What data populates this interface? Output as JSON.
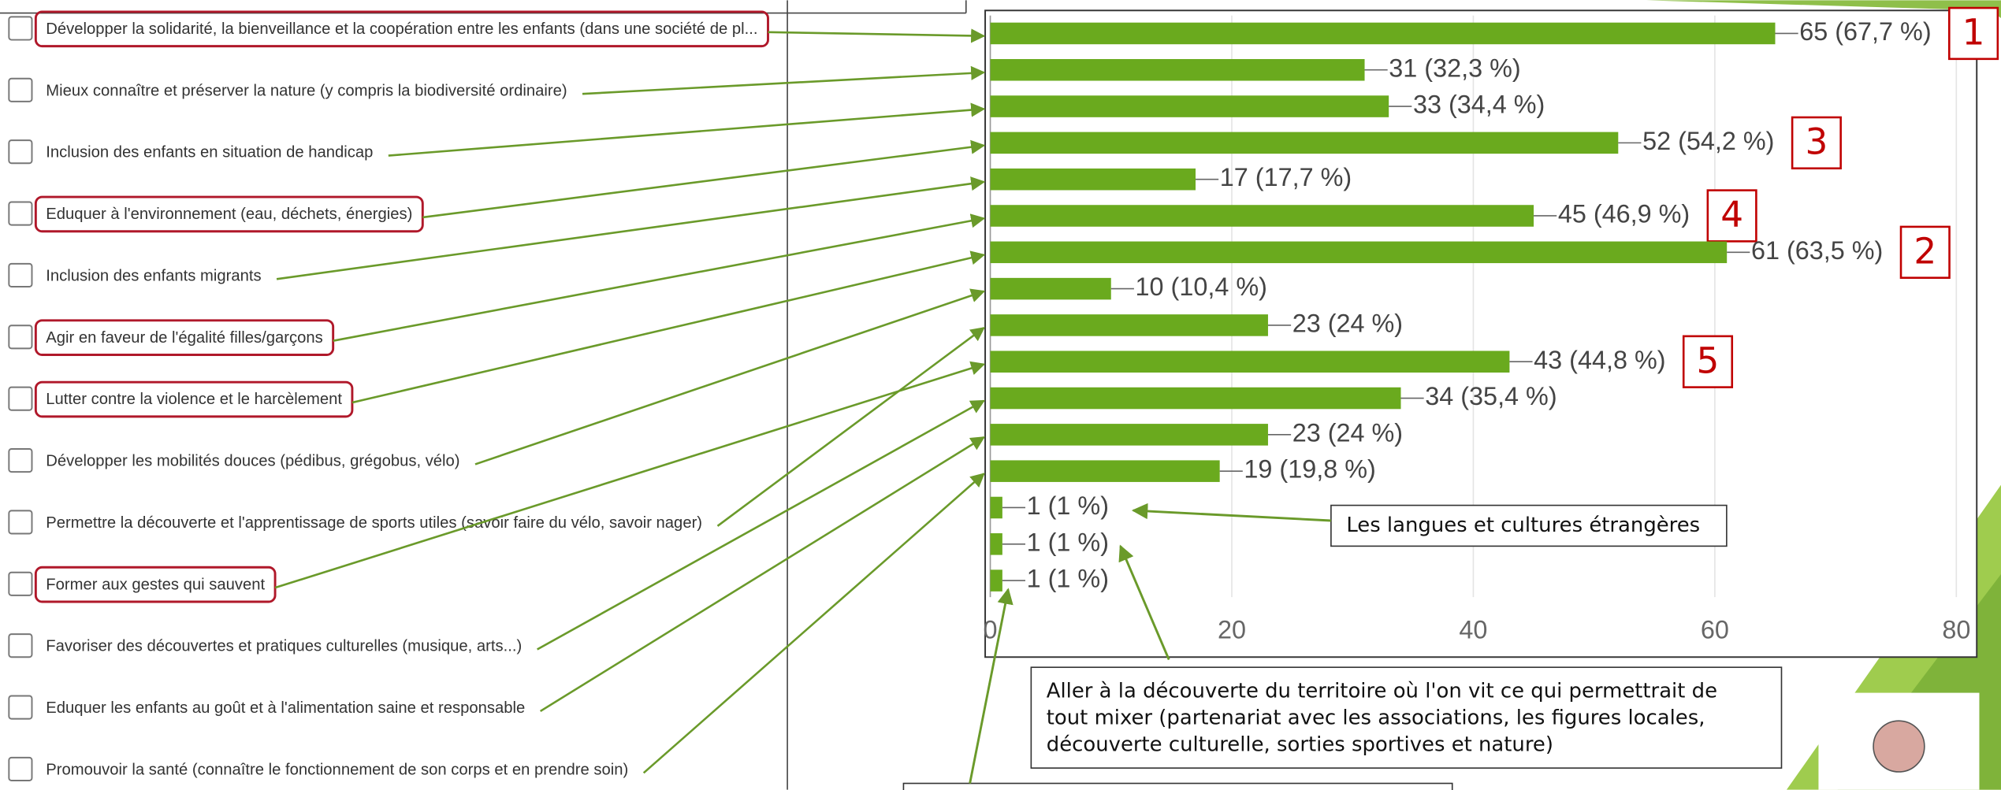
{
  "chart_data": {
    "type": "bar",
    "orientation": "horizontal",
    "values": [
      65,
      31,
      33,
      52,
      17,
      45,
      61,
      10,
      23,
      43,
      34,
      23,
      19,
      1,
      1,
      1
    ],
    "value_labels": [
      "65 (67,7 %)",
      "31 (32,3 %)",
      "33 (34,4 %)",
      "52 (54,2 %)",
      "17 (17,7 %)",
      "45 (46,9 %)",
      "61 (63,5 %)",
      "10 (10,4 %)",
      "23 (24 %)",
      "43 (44,8 %)",
      "34 (35,4 %)",
      "23 (24 %)",
      "19 (19,8 %)",
      "1 (1 %)",
      "1 (1 %)",
      "1 (1 %)"
    ],
    "rank_labels": [
      "1",
      null,
      null,
      "3",
      null,
      "4",
      "2",
      null,
      null,
      "5",
      null,
      null,
      null,
      null,
      null,
      null
    ],
    "color": "#6aaa1e",
    "xlim": [
      0,
      80
    ],
    "xticks": [
      0,
      20,
      40,
      60,
      80
    ],
    "grid": true
  },
  "checklist": [
    {
      "text": "Développer la solidarité, la bienveillance et la coopération entre les enfants (dans une société de pl...",
      "highlighted": true
    },
    {
      "text": "Mieux connaître et préserver la nature (y compris la biodiversité ordinaire)",
      "highlighted": false
    },
    {
      "text": "Inclusion des enfants en situation de handicap",
      "highlighted": false
    },
    {
      "text": "Eduquer à l'environnement (eau, déchets, énergies)",
      "highlighted": true
    },
    {
      "text": "Inclusion des enfants migrants",
      "highlighted": false
    },
    {
      "text": "Agir en faveur de l'égalité filles/garçons",
      "highlighted": true
    },
    {
      "text": "Lutter contre la violence et le harcèlement",
      "highlighted": true
    },
    {
      "text": "Développer les mobilités douces (pédibus, grégobus, vélo)",
      "highlighted": false
    },
    {
      "text": "Permettre la découverte et l'apprentissage de sports utiles (savoir faire du vélo, savoir nager)",
      "highlighted": false
    },
    {
      "text": "Former aux gestes qui sauvent",
      "highlighted": true
    },
    {
      "text": "Favoriser des découvertes et pratiques culturelles (musique, arts...)",
      "highlighted": false
    },
    {
      "text": "Eduquer les enfants au goût et à l'alimentation saine et responsable",
      "highlighted": false
    },
    {
      "text": "Promouvoir la santé (connaître le fonctionnement de son corps et en prendre soin)",
      "highlighted": false
    }
  ],
  "notes": [
    "Les langues et cultures étrangères",
    [
      "Aller à la découverte du territoire où l'on vit ce qui permettrait de",
      "tout mixer (partenariat avec les associations, les figures locales,",
      "découverte culturelle, sorties sportives et nature)"
    ]
  ]
}
